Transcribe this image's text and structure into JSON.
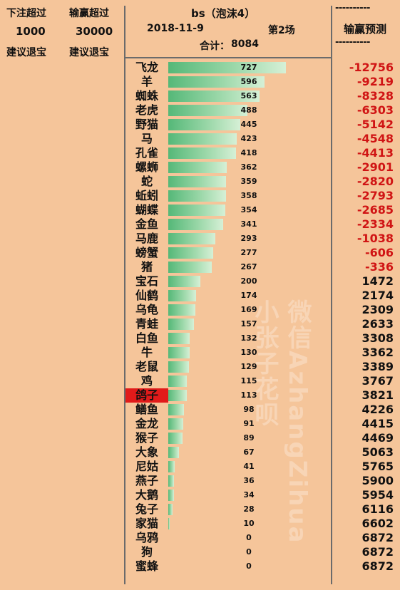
{
  "left_panel": {
    "bet_label": "下注超过",
    "bet_value": "1000",
    "bet_advice": "建议退宝",
    "win_label": "输赢超过",
    "win_value": "30000",
    "win_advice": "建议退宝"
  },
  "header": {
    "title": "bs（泡沫4）",
    "date": "2018-11-9",
    "round": "第2场",
    "total_label": "合计：",
    "total_value": "8084"
  },
  "right_header": {
    "dashes_top": "----------",
    "label": "输赢预测",
    "dashes_bottom": "----------"
  },
  "watermark": {
    "text": "微信AzhangZihua小张子花呗"
  },
  "rows": [
    {
      "name": "飞龙",
      "count": 727,
      "prediction": "-12756"
    },
    {
      "name": "羊",
      "count": 596,
      "prediction": "-9219"
    },
    {
      "name": "蜘蛛",
      "count": 563,
      "prediction": "-8328"
    },
    {
      "name": "老虎",
      "count": 488,
      "prediction": "-6303"
    },
    {
      "name": "野猫",
      "count": 445,
      "prediction": "-5142"
    },
    {
      "name": "马",
      "count": 423,
      "prediction": "-4548"
    },
    {
      "name": "孔雀",
      "count": 418,
      "prediction": "-4413"
    },
    {
      "name": "螺蛳",
      "count": 362,
      "prediction": "-2901"
    },
    {
      "name": "蛇",
      "count": 359,
      "prediction": "-2820"
    },
    {
      "name": "蚯蚓",
      "count": 358,
      "prediction": "-2793"
    },
    {
      "name": "蝴蝶",
      "count": 354,
      "prediction": "-2685"
    },
    {
      "name": "金鱼",
      "count": 341,
      "prediction": "-2334"
    },
    {
      "name": "马鹿",
      "count": 293,
      "prediction": "-1038"
    },
    {
      "name": "螃蟹",
      "count": 277,
      "prediction": "-606"
    },
    {
      "name": "猪",
      "count": 267,
      "prediction": "-336"
    },
    {
      "name": "宝石",
      "count": 200,
      "prediction": "1472"
    },
    {
      "name": "仙鹤",
      "count": 174,
      "prediction": "2174"
    },
    {
      "name": "乌龟",
      "count": 169,
      "prediction": "2309"
    },
    {
      "name": "青蛙",
      "count": 157,
      "prediction": "2633"
    },
    {
      "name": "白鱼",
      "count": 132,
      "prediction": "3308"
    },
    {
      "name": "牛",
      "count": 130,
      "prediction": "3362"
    },
    {
      "name": "老鼠",
      "count": 129,
      "prediction": "3389"
    },
    {
      "name": "鸡",
      "count": 115,
      "prediction": "3767"
    },
    {
      "name": "鸽子",
      "count": 113,
      "prediction": "3821",
      "highlight": true
    },
    {
      "name": "鳝鱼",
      "count": 98,
      "prediction": "4226"
    },
    {
      "name": "金龙",
      "count": 91,
      "prediction": "4415"
    },
    {
      "name": "猴子",
      "count": 89,
      "prediction": "4469"
    },
    {
      "name": "大象",
      "count": 67,
      "prediction": "5063"
    },
    {
      "name": "尼姑",
      "count": 41,
      "prediction": "5765"
    },
    {
      "name": "燕子",
      "count": 36,
      "prediction": "5900"
    },
    {
      "name": "大鹅",
      "count": 34,
      "prediction": "5954"
    },
    {
      "name": "兔子",
      "count": 28,
      "prediction": "6116"
    },
    {
      "name": "家猫",
      "count": 10,
      "prediction": "6602"
    },
    {
      "name": "乌鸦",
      "count": 0,
      "prediction": "6872"
    },
    {
      "name": "狗",
      "count": 0,
      "prediction": "6872"
    },
    {
      "name": "蜜蜂",
      "count": 0,
      "prediction": "6872"
    }
  ]
}
